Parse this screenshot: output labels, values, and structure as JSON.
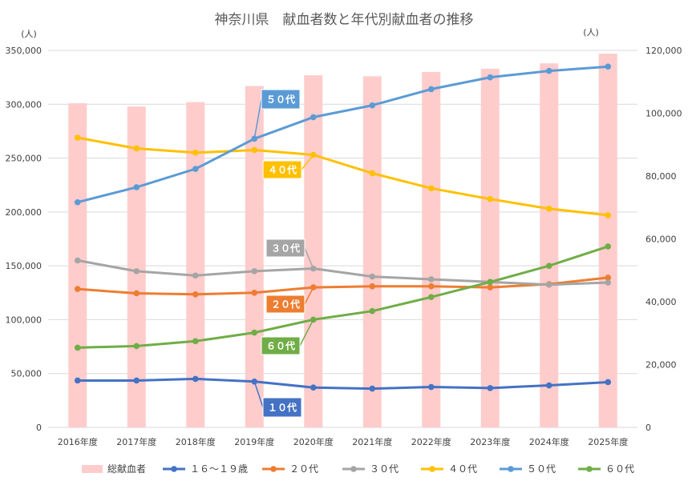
{
  "chart_data": {
    "type": "bar+line",
    "title": "神奈川県　献血者数と年代別献血者の推移",
    "left_axis_unit": "(人)",
    "right_axis_unit": "(人)",
    "categories": [
      "2016年度",
      "2017年度",
      "2018年度",
      "2019年度",
      "2020年度",
      "2021年度",
      "2022年度",
      "2023年度",
      "2024年度",
      "2025年度"
    ],
    "left_axis": {
      "min": 0,
      "max": 350000,
      "ticks": [
        "0",
        "50,000",
        "100,000",
        "150,000",
        "200,000",
        "250,000",
        "300,000",
        "350,000"
      ]
    },
    "right_axis": {
      "min": 0,
      "max": 120000,
      "ticks": [
        "0",
        "20,000",
        "40,000",
        "60,000",
        "80,000",
        "100,000",
        "120,000"
      ]
    },
    "bar_series": {
      "name": "総献血者",
      "axis": "left",
      "color": "#ffcccc",
      "values": [
        301000,
        298000,
        302000,
        317000,
        327000,
        326000,
        330000,
        333000,
        338000,
        347000
      ]
    },
    "line_series": [
      {
        "name": "１６～１９歳",
        "label": "１０代",
        "color": "#4472c4",
        "axis": "left",
        "values": [
          43500,
          43500,
          45000,
          42500,
          37000,
          36000,
          37500,
          36500,
          39000,
          42000
        ]
      },
      {
        "name": "２０代",
        "label": "２０代",
        "color": "#ed7d31",
        "axis": "left",
        "values": [
          128500,
          124500,
          123500,
          125000,
          130000,
          131000,
          131000,
          130000,
          133000,
          139000
        ]
      },
      {
        "name": "３０代",
        "label": "３０代",
        "color": "#a5a5a5",
        "axis": "left",
        "values": [
          155000,
          145000,
          141000,
          145000,
          147500,
          140000,
          137500,
          135000,
          132500,
          134500
        ]
      },
      {
        "name": "４０代",
        "label": "４０代",
        "color": "#ffc000",
        "axis": "left",
        "values": [
          269000,
          259000,
          255000,
          257500,
          253000,
          236000,
          222000,
          212000,
          203000,
          197000
        ]
      },
      {
        "name": "５０代",
        "label": "５０代",
        "color": "#5b9bd5",
        "axis": "left",
        "values": [
          209000,
          223000,
          240000,
          268000,
          288000,
          299000,
          314000,
          325000,
          331000,
          335000
        ]
      },
      {
        "name": "６０代",
        "label": "６０代",
        "color": "#70ad47",
        "axis": "left",
        "values": [
          74000,
          75500,
          80000,
          88000,
          100000,
          108000,
          121000,
          135000,
          150000,
          168000
        ]
      }
    ],
    "legend_position": "bottom",
    "grid": true
  }
}
